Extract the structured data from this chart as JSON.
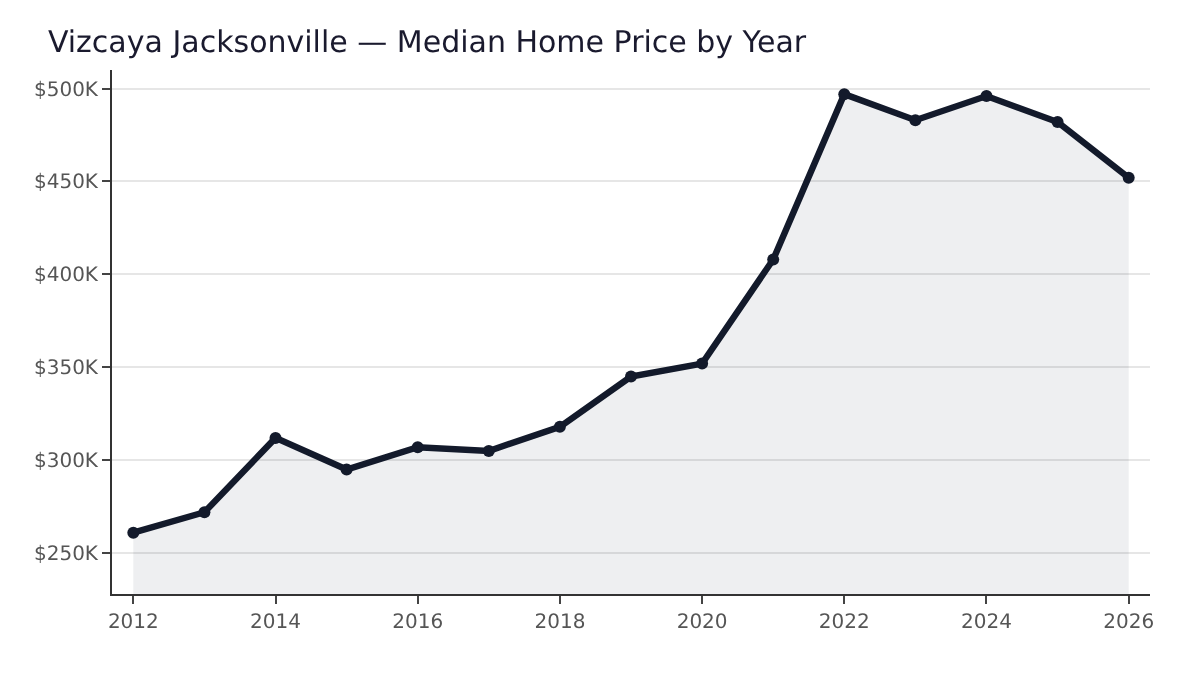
{
  "chart_data": {
    "type": "area",
    "title": "Vizcaya Jacksonville — Median Home Price by Year",
    "x": [
      2012,
      2013,
      2014,
      2015,
      2016,
      2017,
      2018,
      2019,
      2020,
      2021,
      2022,
      2023,
      2024,
      2025,
      2026
    ],
    "series": [
      {
        "color": "#131a2b",
        "values": [
          261,
          272,
          312,
          295,
          307,
          305,
          318,
          345,
          352,
          408,
          497,
          483,
          496,
          482,
          452
        ]
      }
    ],
    "xlim": [
      2011.7,
      2026.3
    ],
    "xticks": [
      2012,
      2014,
      2016,
      2018,
      2020,
      2022,
      2024,
      2026
    ],
    "ylim": [
      228,
      510
    ],
    "yticks": [
      {
        "value": 250,
        "label": "$250K"
      },
      {
        "value": 300,
        "label": "$300K"
      },
      {
        "value": 350,
        "label": "$350K"
      },
      {
        "value": 400,
        "label": "$400K"
      },
      {
        "value": 450,
        "label": "$450K"
      },
      {
        "value": 500,
        "label": "$500K"
      }
    ],
    "grid": "y",
    "marker": "circle",
    "line_style": "solid"
  }
}
